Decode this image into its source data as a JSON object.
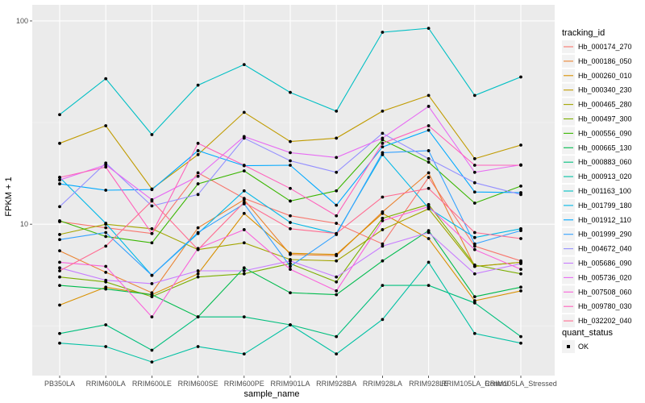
{
  "chart_data": {
    "type": "line",
    "title": "",
    "xlabel": "sample_name",
    "ylabel": "FPKM + 1",
    "y_scale": "log10",
    "ylim": [
      1.8,
      120
    ],
    "y_ticks": [
      {
        "value": 10,
        "label": "10"
      },
      {
        "value": 100,
        "label": "100"
      }
    ],
    "grid": true,
    "legend_position": "right",
    "categories": [
      "PB350LA",
      "RRIM600LA",
      "RRIM600LE",
      "RRIM600SE",
      "RRIM600PE",
      "RRIM901LA",
      "RRIM928BA",
      "RRIM928LA",
      "RRIM928LE",
      "RRIM105LA_Control",
      "RRIM105LA_Stressed"
    ],
    "legend_title": "tracking_id",
    "series": [
      {
        "name": "Hb_000174_270",
        "color": "#F8766D",
        "values": [
          10.3,
          9.6,
          9.0,
          17.9,
          13.4,
          11.0,
          10.1,
          8.0,
          17.0,
          7.8,
          6.6
        ]
      },
      {
        "name": "Hb_000186_050",
        "color": "#EA8331",
        "values": [
          7.4,
          5.8,
          4.6,
          9.6,
          13.2,
          7.1,
          7.0,
          11.5,
          17.9,
          6.2,
          6.5
        ]
      },
      {
        "name": "Hb_000260_010",
        "color": "#D89000",
        "values": [
          4.0,
          4.9,
          4.5,
          5.7,
          11.3,
          7.2,
          7.1,
          11.3,
          8.5,
          4.2,
          4.7
        ]
      },
      {
        "name": "Hb_000340_230",
        "color": "#C09B00",
        "values": [
          25.0,
          30.5,
          14.9,
          22.0,
          35.5,
          25.5,
          26.5,
          36.0,
          43.0,
          21.0,
          24.5
        ]
      },
      {
        "name": "Hb_000465_280",
        "color": "#A3A500",
        "values": [
          8.9,
          10.0,
          9.5,
          7.5,
          8.1,
          6.7,
          6.6,
          9.4,
          11.9,
          6.2,
          6.5
        ]
      },
      {
        "name": "Hb_000497_300",
        "color": "#7CAE00",
        "values": [
          5.5,
          5.2,
          4.4,
          5.5,
          5.7,
          6.4,
          5.2,
          10.7,
          12.5,
          6.3,
          5.7
        ]
      },
      {
        "name": "Hb_000556_090",
        "color": "#39B600",
        "values": [
          10.4,
          8.7,
          8.1,
          15.8,
          18.3,
          13.0,
          14.6,
          26.0,
          20.2,
          12.7,
          15.4
        ]
      },
      {
        "name": "Hb_000665_130",
        "color": "#00BB4E",
        "values": [
          5.0,
          4.8,
          4.5,
          3.5,
          6.1,
          4.6,
          4.5,
          6.6,
          9.3,
          4.4,
          4.9
        ]
      },
      {
        "name": "Hb_000883_060",
        "color": "#00BF7D",
        "values": [
          2.9,
          3.2,
          2.4,
          3.5,
          3.5,
          3.2,
          2.8,
          5.0,
          5.0,
          4.1,
          2.8
        ]
      },
      {
        "name": "Hb_000913_020",
        "color": "#00C1A3",
        "values": [
          2.6,
          2.5,
          2.1,
          2.5,
          2.3,
          3.2,
          2.3,
          3.4,
          6.5,
          2.9,
          2.6
        ]
      },
      {
        "name": "Hb_001163_100",
        "color": "#00BFC4",
        "values": [
          34.6,
          52.0,
          27.6,
          48.3,
          61.0,
          44.5,
          36.0,
          88.0,
          92.0,
          43.0,
          53.0
        ]
      },
      {
        "name": "Hb_001799_180",
        "color": "#00B8E7",
        "values": [
          17.0,
          10.1,
          5.6,
          9.0,
          14.6,
          10.2,
          9.0,
          22.0,
          12.0,
          8.6,
          9.5
        ]
      },
      {
        "name": "Hb_001912_110",
        "color": "#00A9FF",
        "values": [
          15.8,
          14.7,
          14.8,
          23.0,
          19.4,
          19.5,
          12.4,
          24.0,
          29.0,
          14.4,
          14.3
        ]
      },
      {
        "name": "Hb_001999_290",
        "color": "#35A2FF",
        "values": [
          8.4,
          9.1,
          5.6,
          9.1,
          12.6,
          6.2,
          8.9,
          22.5,
          23.0,
          8.0,
          9.3
        ]
      },
      {
        "name": "Hb_004672_040",
        "color": "#9590FF",
        "values": [
          12.2,
          20.0,
          12.3,
          14.0,
          26.5,
          20.5,
          18.0,
          28.0,
          21.0,
          16.0,
          14.0
        ]
      },
      {
        "name": "Hb_005686_090",
        "color": "#C77CFF",
        "values": [
          6.1,
          5.3,
          5.1,
          5.9,
          5.9,
          6.6,
          5.5,
          7.8,
          9.1,
          5.7,
          6.4
        ]
      },
      {
        "name": "Hb_005736_020",
        "color": "#E76BF3",
        "values": [
          16.5,
          19.6,
          13.2,
          17.2,
          27.0,
          22.5,
          21.3,
          26.5,
          38.0,
          18.0,
          19.6
        ]
      },
      {
        "name": "Hb_007508_060",
        "color": "#FA62DB",
        "values": [
          6.5,
          6.2,
          3.5,
          7.6,
          9.4,
          6.0,
          4.7,
          10.4,
          12.2,
          7.5,
          6.0
        ]
      },
      {
        "name": "Hb_009780_030",
        "color": "#FF62BC",
        "values": [
          17.0,
          19.1,
          9.0,
          25.0,
          19.5,
          15.0,
          11.0,
          25.0,
          30.5,
          19.5,
          19.5
        ]
      },
      {
        "name": "Hb_032202_040",
        "color": "#FF6C91",
        "values": [
          5.9,
          7.8,
          13.0,
          7.5,
          12.8,
          9.5,
          9.0,
          13.6,
          15.0,
          9.1,
          8.5
        ]
      }
    ],
    "second_legend": {
      "title": "quant_status",
      "items": [
        {
          "label": "OK"
        }
      ]
    }
  }
}
